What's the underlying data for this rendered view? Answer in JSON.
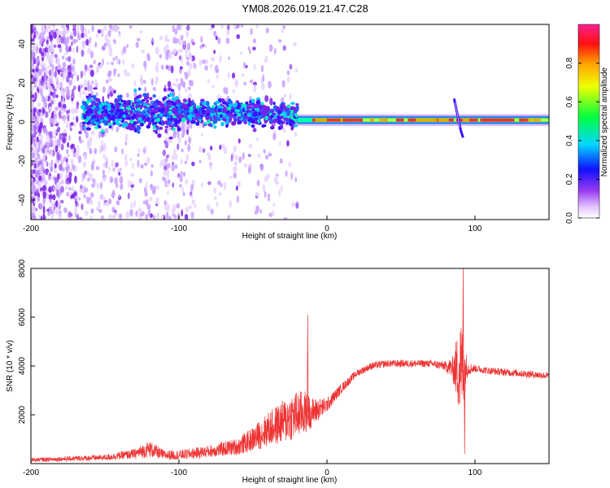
{
  "title": "YM08.2026.019.21.47.C28",
  "chart_data": [
    {
      "type": "heatmap",
      "xlabel": "Height of straight line (km)",
      "ylabel": "Frequency (Hz)",
      "xlim": [
        -200,
        150
      ],
      "ylim": [
        -50,
        50
      ],
      "xticks": [
        -200,
        -100,
        0,
        100
      ],
      "yticks": [
        -40,
        -20,
        0,
        20,
        40
      ],
      "colorbar": {
        "label": "Normalized spectral amplitude",
        "range": [
          0,
          1
        ],
        "ticks": [
          "0.0",
          "0.2",
          "0.4",
          "0.6",
          "0.8"
        ],
        "colors": [
          "#ffffff",
          "#d9b3ff",
          "#8a2be2",
          "#0000ff",
          "#00ffff",
          "#00ff00",
          "#ffff00",
          "#ffa500",
          "#ff0000",
          "#ff2080"
        ]
      },
      "features": {
        "noise_region_km": [
          -200,
          -20
        ],
        "scatter_band_center_hz": 5,
        "tone_center_hz": 1,
        "strong_tone_km": [
          -20,
          150
        ],
        "disturbance_km": 87
      }
    },
    {
      "type": "line",
      "xlabel": "Height of straight line (km)",
      "ylabel": "SNR (10 * v/v)",
      "xlim": [
        -200,
        150
      ],
      "ylim": [
        0,
        8000
      ],
      "xticks": [
        -200,
        -100,
        0,
        100
      ],
      "yticks": [
        2000,
        4000,
        6000,
        8000
      ],
      "color": "#ee3333",
      "envelope": {
        "x": [
          -200,
          -150,
          -130,
          -120,
          -110,
          -100,
          -80,
          -60,
          -50,
          -40,
          -30,
          -25,
          -20,
          -15,
          -10,
          0,
          10,
          20,
          30,
          40,
          50,
          60,
          70,
          80,
          85,
          88,
          90,
          92,
          95,
          100,
          110,
          120,
          130,
          140,
          150
        ],
        "mean": [
          150,
          250,
          400,
          600,
          350,
          350,
          500,
          700,
          1000,
          1400,
          1700,
          1900,
          2000,
          2100,
          2100,
          2400,
          3100,
          3700,
          4000,
          4100,
          4100,
          4100,
          4100,
          4000,
          3900,
          3900,
          3900,
          3900,
          3900,
          3900,
          3800,
          3750,
          3700,
          3650,
          3600
        ],
        "noise": [
          80,
          120,
          200,
          350,
          200,
          200,
          250,
          350,
          500,
          700,
          900,
          1000,
          1000,
          900,
          600,
          300,
          200,
          150,
          150,
          150,
          150,
          150,
          150,
          200,
          500,
          1400,
          2200,
          1500,
          300,
          150,
          150,
          150,
          150,
          150,
          150
        ]
      },
      "spikes": [
        {
          "x": -13,
          "y": 6100
        },
        {
          "x": 92,
          "y": 8000
        },
        {
          "x": 93,
          "y": 400
        }
      ]
    }
  ]
}
